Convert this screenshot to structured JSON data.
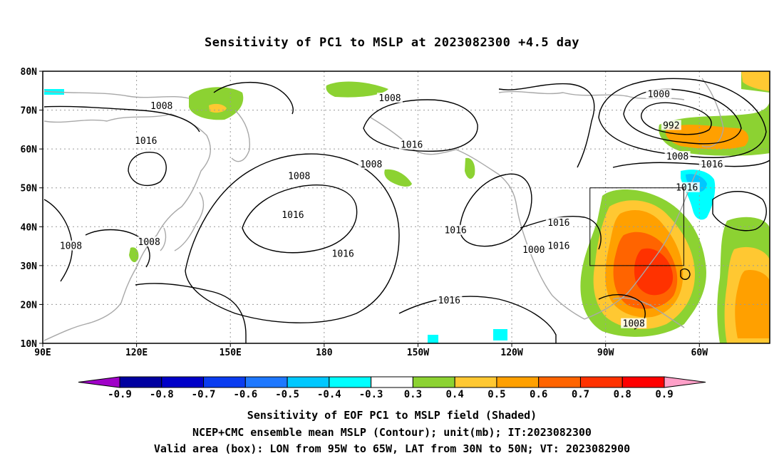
{
  "title": "Sensitivity of PC1 to MSLP at 2023082300 +4.5 day",
  "map": {
    "lon_ticks": [
      "90E",
      "120E",
      "150E",
      "180",
      "150W",
      "120W",
      "90W",
      "60W"
    ],
    "lat_ticks": [
      "10N",
      "20N",
      "30N",
      "40N",
      "50N",
      "60N",
      "70N",
      "80N"
    ],
    "contour_labels": [
      {
        "text": "1008",
        "lon": 128,
        "lat": 71
      },
      {
        "text": "1016",
        "lon": 123,
        "lat": 62
      },
      {
        "text": "1008",
        "lon": 99,
        "lat": 35
      },
      {
        "text": "1008",
        "lon": 124,
        "lat": 36
      },
      {
        "text": "1008",
        "lon": 172,
        "lat": 53
      },
      {
        "text": "1016",
        "lon": 170,
        "lat": 43
      },
      {
        "text": "1008",
        "lon": -159,
        "lat": 73
      },
      {
        "text": "1008",
        "lon": -165,
        "lat": 56
      },
      {
        "text": "1016",
        "lon": -152,
        "lat": 61
      },
      {
        "text": "1016",
        "lon": -174,
        "lat": 33
      },
      {
        "text": "1016",
        "lon": -138,
        "lat": 39
      },
      {
        "text": "1016",
        "lon": -140,
        "lat": 21
      },
      {
        "text": "1016",
        "lon": -105,
        "lat": 41
      },
      {
        "text": "1016",
        "lon": -105,
        "lat": 35
      },
      {
        "text": "1000",
        "lon": -113,
        "lat": 34
      },
      {
        "text": "1000",
        "lon": -73,
        "lat": 74
      },
      {
        "text": "992",
        "lon": -69,
        "lat": 66
      },
      {
        "text": "1008",
        "lon": -67,
        "lat": 58
      },
      {
        "text": "1016",
        "lon": -56,
        "lat": 56
      },
      {
        "text": "1016",
        "lon": -64,
        "lat": 50
      },
      {
        "text": "1008",
        "lon": -81,
        "lat": 15
      }
    ],
    "valid_box": {
      "lon_min": -95,
      "lon_max": -65,
      "lat_min": 30,
      "lat_max": 50
    }
  },
  "colorbar": {
    "labels": [
      "-0.9",
      "-0.8",
      "-0.7",
      "-0.6",
      "-0.5",
      "-0.4",
      "-0.3",
      "0.3",
      "0.4",
      "0.5",
      "0.6",
      "0.7",
      "0.8",
      "0.9"
    ],
    "colors": [
      "#a000c8",
      "#0000a0",
      "#0000c8",
      "#0a3cf0",
      "#1e78ff",
      "#00c8ff",
      "#00ffff",
      "#ffffff",
      "#8cd232",
      "#ffc832",
      "#ffa000",
      "#ff6400",
      "#ff3200",
      "#ff0000",
      "#ffa0c8"
    ]
  },
  "captions": [
    "Sensitivity of EOF PC1 to MSLP field (Shaded)",
    "NCEP+CMC ensemble mean MSLP (Contour); unit(mb); IT:2023082300",
    "Valid area (box): LON from 95W to 65W, LAT from 30N to 50N; VT: 2023082900"
  ]
}
